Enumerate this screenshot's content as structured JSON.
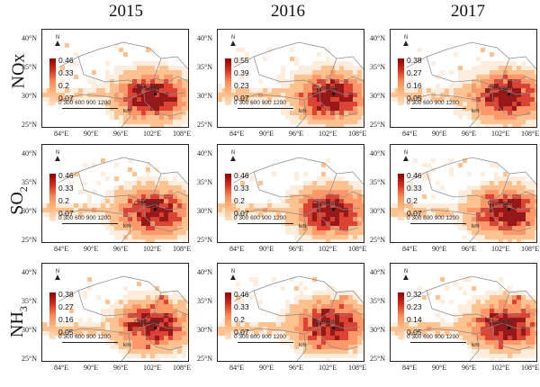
{
  "columns": [
    "2015",
    "2016",
    "2017"
  ],
  "rows": [
    {
      "key": "nox",
      "label": "NOx",
      "sub": ""
    },
    {
      "key": "so2",
      "label": "SO",
      "sub": "2"
    },
    {
      "key": "nh3",
      "label": "NH",
      "sub": "3"
    }
  ],
  "lat_labels": [
    "40°N",
    "35°N",
    "30°N",
    "25°N"
  ],
  "lon_labels": [
    "84°E",
    "90°E",
    "96°E",
    "102°E",
    "108°E"
  ],
  "scale": {
    "ticks": "0  300 600 900 1200",
    "unit": "km"
  },
  "north_label": "N",
  "city_label": "Chengdu",
  "colors": {
    "max": "#8b0000",
    "high": "#d7301f",
    "mid": "#fc8d59",
    "low": "#fdbb84",
    "min": "#fde0c5"
  },
  "legends": [
    [
      [
        "0.46",
        "0.33",
        "0.2",
        "0.07"
      ],
      [
        "0.55",
        "0.39",
        "0.23",
        "0.07"
      ],
      [
        "0.38",
        "0.27",
        "0.16",
        "0.05"
      ]
    ],
    [
      [
        "0.46",
        "0.33",
        "0.2",
        "0.07"
      ],
      [
        "0.46",
        "0.33",
        "0.2",
        "0.07"
      ],
      [
        "0.46",
        "0.33",
        "0.2",
        "0.07"
      ]
    ],
    [
      [
        "0.38",
        "0.27",
        "0.16",
        "0.05"
      ],
      [
        "0.46",
        "0.33",
        "0.2",
        "0.07"
      ],
      [
        "0.32",
        "0.23",
        "0.14",
        "0.05"
      ]
    ]
  ]
}
